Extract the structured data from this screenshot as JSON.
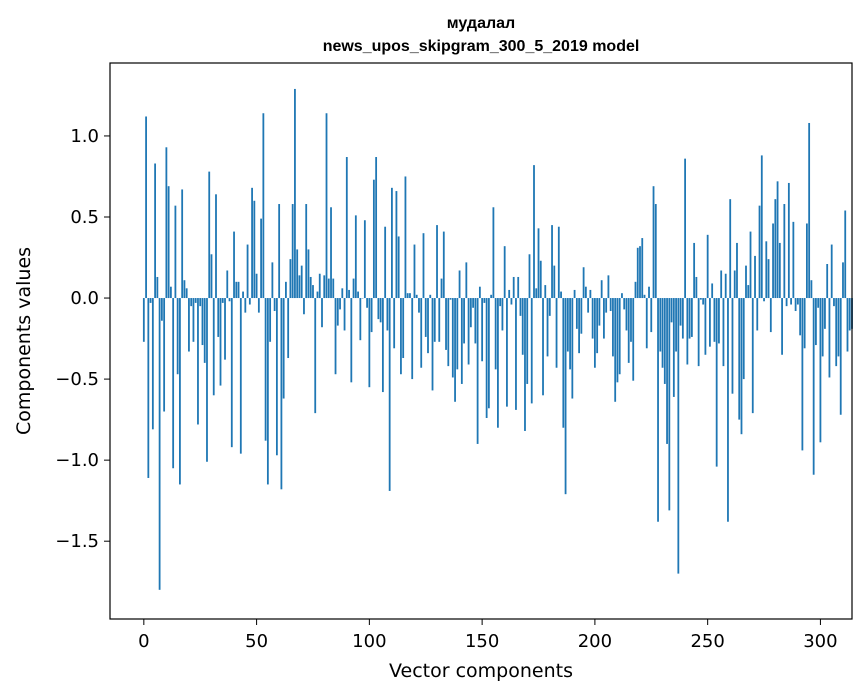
{
  "chart_data": {
    "type": "bar",
    "title": "мудалал",
    "subtitle": "news_upos_skipgram_300_5_2019 model",
    "xlabel": "Vector components",
    "ylabel": "Components values",
    "xlim": [
      -15,
      314
    ],
    "ylim": [
      -1.98,
      1.45
    ],
    "grid": false,
    "x_ticks": [
      0,
      50,
      100,
      150,
      200,
      250,
      300
    ],
    "y_ticks": [
      1.0,
      0.5,
      0.0,
      -0.5,
      -1.0,
      -1.5
    ],
    "y_tick_labels": [
      "1.0",
      "0.5",
      "0.0",
      "−0.5",
      "−1.0",
      "−1.5"
    ],
    "x_tick_labels": [
      "0",
      "50",
      "100",
      "150",
      "200",
      "250",
      "300"
    ],
    "bar_color": "#1f77b4",
    "values": [
      -0.27,
      1.12,
      -1.11,
      -0.03,
      -0.81,
      0.83,
      0.13,
      -1.8,
      -0.14,
      -0.7,
      0.93,
      0.69,
      0.07,
      -1.05,
      0.57,
      -0.47,
      -1.15,
      0.67,
      0.11,
      0.06,
      -0.33,
      -0.05,
      -0.27,
      -0.03,
      -0.78,
      -0.05,
      -0.29,
      -0.4,
      -1.01,
      0.78,
      0.27,
      -0.6,
      0.64,
      -0.24,
      -0.54,
      -0.03,
      -0.38,
      0.17,
      -0.02,
      -0.92,
      0.41,
      0.1,
      0.1,
      -0.96,
      0.04,
      -0.09,
      0.33,
      -0.04,
      0.68,
      0.6,
      0.15,
      -0.09,
      0.49,
      1.14,
      -0.88,
      -1.15,
      -0.27,
      0.22,
      -0.08,
      -0.97,
      0.58,
      -1.18,
      -0.62,
      0.1,
      -0.37,
      0.24,
      0.58,
      1.29,
      0.3,
      0.14,
      0.2,
      -0.1,
      0.58,
      0.3,
      0.13,
      0.08,
      -0.71,
      0.04,
      0.15,
      -0.18,
      0.14,
      1.14,
      0.12,
      0.56,
      0.12,
      -0.47,
      -0.17,
      -0.07,
      0.06,
      -0.2,
      0.87,
      0.05,
      -0.52,
      0.12,
      0.51,
      0.04,
      -0.26,
      0.0,
      0.48,
      -0.06,
      -0.55,
      -0.21,
      0.73,
      0.87,
      -0.13,
      -0.15,
      -0.58,
      0.44,
      -0.2,
      -1.19,
      0.68,
      -0.31,
      0.66,
      0.38,
      -0.47,
      -0.37,
      0.75,
      0.03,
      0.03,
      -0.5,
      0.33,
      0.02,
      -0.09,
      -0.43,
      0.4,
      -0.24,
      -0.34,
      0.02,
      -0.57,
      -0.27,
      0.45,
      -0.27,
      0.12,
      0.41,
      -0.32,
      -0.42,
      -0.01,
      -0.49,
      -0.64,
      -0.44,
      0.17,
      -0.53,
      -0.28,
      0.22,
      -0.41,
      -0.18,
      -0.06,
      -0.28,
      -0.9,
      0.07,
      -0.39,
      -0.03,
      -0.74,
      -0.68,
      0.02,
      0.56,
      -0.44,
      -0.8,
      -0.05,
      -0.2,
      0.32,
      -0.67,
      0.05,
      -0.04,
      0.13,
      -0.69,
      0.13,
      -0.11,
      -0.35,
      -0.82,
      -0.53,
      0.27,
      -0.65,
      0.82,
      0.06,
      0.43,
      0.23,
      -0.6,
      0.08,
      -0.36,
      -0.11,
      0.45,
      0.2,
      -0.43,
      0.44,
      0.04,
      -0.8,
      -1.21,
      -0.33,
      -0.44,
      -0.62,
      0.05,
      -0.19,
      -0.34,
      -0.22,
      0.19,
      0.07,
      -0.09,
      0.05,
      -0.25,
      -0.43,
      -0.34,
      -0.17,
      0.11,
      -0.25,
      -0.09,
      0.14,
      -0.08,
      -0.36,
      -0.64,
      -0.52,
      -0.47,
      0.03,
      -0.07,
      -0.2,
      -0.4,
      -0.27,
      -0.51,
      0.1,
      0.31,
      0.32,
      0.37,
      0.02,
      -0.31,
      0.07,
      -0.21,
      0.69,
      0.58,
      -1.38,
      -0.33,
      -0.43,
      -0.53,
      -0.9,
      -1.31,
      -0.15,
      -0.61,
      -0.33,
      -1.7,
      -0.17,
      -0.25,
      0.86,
      -0.41,
      -0.25,
      -0.24,
      0.34,
      0.13,
      -0.42,
      -0.01,
      -0.04,
      -0.35,
      0.39,
      -0.3,
      0.09,
      -0.27,
      -1.04,
      -0.28,
      0.17,
      -0.42,
      0.15,
      -1.38,
      0.61,
      -0.59,
      0.17,
      0.34,
      -0.75,
      -0.84,
      -0.5,
      0.2,
      0.08,
      0.41,
      -0.71,
      0.26,
      -0.2,
      0.57,
      0.88,
      -0.02,
      0.35,
      0.24,
      -0.21,
      0.46,
      0.61,
      0.72,
      0.34,
      -0.35,
      0.58,
      -0.05,
      0.71,
      -0.04,
      0.47,
      -0.08,
      -0.04,
      -0.23,
      -0.94,
      -0.31,
      0.46,
      1.08,
      0.11,
      -1.09,
      -0.29,
      -0.06,
      -0.89,
      -0.36,
      -0.19,
      0.21,
      -0.49,
      0.33,
      -0.05,
      -0.42,
      -0.36,
      -0.72,
      0.22,
      0.54,
      -0.33,
      -0.2,
      -0.19
    ]
  }
}
